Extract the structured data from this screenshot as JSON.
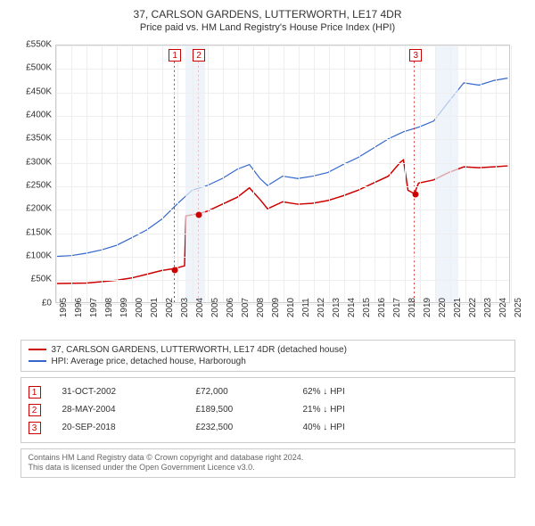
{
  "title": "37, CARLSON GARDENS, LUTTERWORTH, LE17 4DR",
  "subtitle": "Price paid vs. HM Land Registry's House Price Index (HPI)",
  "chart": {
    "type": "line",
    "background_color": "#ffffff",
    "grid_color": "#eeeeee",
    "border_color": "#cccccc",
    "ylim": [
      0,
      550000
    ],
    "ytick_step": 50000,
    "yticks": [
      "£0",
      "£50K",
      "£100K",
      "£150K",
      "£200K",
      "£250K",
      "£300K",
      "£350K",
      "£400K",
      "£450K",
      "£500K",
      "£550K"
    ],
    "xlim": [
      1995,
      2025
    ],
    "xticks": [
      "1995",
      "1996",
      "1997",
      "1998",
      "1999",
      "2000",
      "2001",
      "2002",
      "2003",
      "2004",
      "2005",
      "2006",
      "2007",
      "2008",
      "2009",
      "2010",
      "2011",
      "2012",
      "2013",
      "2014",
      "2015",
      "2016",
      "2017",
      "2018",
      "2019",
      "2020",
      "2021",
      "2022",
      "2023",
      "2024",
      "2025"
    ],
    "shaded_bands": [
      {
        "from": 2003.5,
        "to": 2004.8,
        "color": "#e8f0fa"
      },
      {
        "from": 2020.0,
        "to": 2021.5,
        "color": "#e8f0fa"
      }
    ],
    "series": [
      {
        "id": "property",
        "label": "37, CARLSON GARDENS, LUTTERWORTH, LE17 4DR (detached house)",
        "color": "#cc0000",
        "line_width": 1.5,
        "data": [
          [
            1995,
            40000
          ],
          [
            1996,
            40500
          ],
          [
            1997,
            41000
          ],
          [
            1998,
            44000
          ],
          [
            1999,
            47000
          ],
          [
            2000,
            52000
          ],
          [
            2001,
            60000
          ],
          [
            2002,
            68000
          ],
          [
            2002.83,
            72000
          ],
          [
            2002.84,
            72000
          ],
          [
            2003.5,
            78000
          ],
          [
            2003.6,
            185000
          ],
          [
            2004.41,
            189500
          ],
          [
            2005,
            195000
          ],
          [
            2006,
            210000
          ],
          [
            2007,
            225000
          ],
          [
            2007.8,
            245000
          ],
          [
            2008.5,
            220000
          ],
          [
            2009,
            200000
          ],
          [
            2010,
            215000
          ],
          [
            2011,
            210000
          ],
          [
            2012,
            212000
          ],
          [
            2013,
            218000
          ],
          [
            2014,
            228000
          ],
          [
            2015,
            240000
          ],
          [
            2016,
            255000
          ],
          [
            2017,
            270000
          ],
          [
            2017.8,
            300000
          ],
          [
            2018,
            305000
          ],
          [
            2018.3,
            240000
          ],
          [
            2018.72,
            232500
          ],
          [
            2019,
            255000
          ],
          [
            2020,
            262000
          ],
          [
            2021,
            278000
          ],
          [
            2022,
            290000
          ],
          [
            2023,
            288000
          ],
          [
            2024,
            290000
          ],
          [
            2024.9,
            292000
          ]
        ]
      },
      {
        "id": "hpi",
        "label": "HPI: Average price, detached house, Harborough",
        "color": "#3366cc",
        "line_width": 1.2,
        "data": [
          [
            1995,
            98000
          ],
          [
            1996,
            100000
          ],
          [
            1997,
            105000
          ],
          [
            1998,
            112000
          ],
          [
            1999,
            122000
          ],
          [
            2000,
            138000
          ],
          [
            2001,
            155000
          ],
          [
            2002,
            178000
          ],
          [
            2003,
            210000
          ],
          [
            2004,
            240000
          ],
          [
            2005,
            250000
          ],
          [
            2006,
            265000
          ],
          [
            2007,
            285000
          ],
          [
            2007.8,
            295000
          ],
          [
            2008.5,
            265000
          ],
          [
            2009,
            250000
          ],
          [
            2010,
            270000
          ],
          [
            2011,
            265000
          ],
          [
            2012,
            270000
          ],
          [
            2013,
            278000
          ],
          [
            2014,
            295000
          ],
          [
            2015,
            310000
          ],
          [
            2016,
            330000
          ],
          [
            2017,
            350000
          ],
          [
            2018,
            365000
          ],
          [
            2019,
            375000
          ],
          [
            2020,
            388000
          ],
          [
            2021,
            430000
          ],
          [
            2022,
            470000
          ],
          [
            2023,
            465000
          ],
          [
            2024,
            475000
          ],
          [
            2024.9,
            480000
          ]
        ]
      }
    ],
    "markers": [
      {
        "n": "1",
        "x": 2002.83,
        "color": "#cc0000"
      },
      {
        "n": "2",
        "x": 2004.41,
        "color": "#cc0000"
      },
      {
        "n": "3",
        "x": 2018.72,
        "color": "#cc0000"
      }
    ],
    "sale_points": [
      {
        "x": 2002.83,
        "y": 72000,
        "color": "#cc0000"
      },
      {
        "x": 2004.41,
        "y": 189500,
        "color": "#cc0000"
      },
      {
        "x": 2018.72,
        "y": 232500,
        "color": "#cc0000"
      }
    ]
  },
  "legend": {
    "items": [
      {
        "color": "#cc0000",
        "label": "37, CARLSON GARDENS, LUTTERWORTH, LE17 4DR (detached house)"
      },
      {
        "color": "#3366cc",
        "label": "HPI: Average price, detached house, Harborough"
      }
    ]
  },
  "transactions": [
    {
      "n": "1",
      "color": "#cc0000",
      "date": "31-OCT-2002",
      "price": "£72,000",
      "pct": "62% ↓ HPI"
    },
    {
      "n": "2",
      "color": "#cc0000",
      "date": "28-MAY-2004",
      "price": "£189,500",
      "pct": "21% ↓ HPI"
    },
    {
      "n": "3",
      "color": "#cc0000",
      "date": "20-SEP-2018",
      "price": "£232,500",
      "pct": "40% ↓ HPI"
    }
  ],
  "footer": {
    "line1": "Contains HM Land Registry data © Crown copyright and database right 2024.",
    "line2": "This data is licensed under the Open Government Licence v3.0."
  }
}
